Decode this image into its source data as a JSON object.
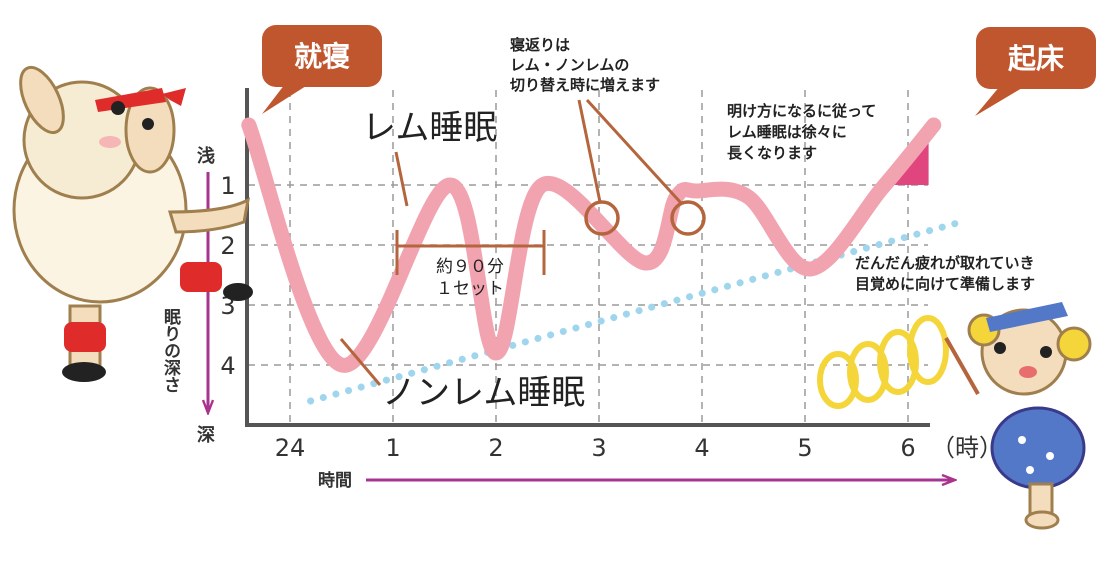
{
  "bubbles": {
    "sleep_onset": "就寝",
    "wake_up": "起床"
  },
  "labels": {
    "rem_sleep": "レム睡眠",
    "nonrem_sleep": "ノンレム睡眠",
    "cycle_line1": "約９０分",
    "cycle_line2": "１セット"
  },
  "annotations": {
    "turnover": [
      "寝返りは",
      "レム・ノンレムの",
      "切り替え時に増えます"
    ],
    "dawn": [
      "明け方になるに従って",
      "レム睡眠は徐々に",
      "長くなります"
    ],
    "fatigue": [
      "だんだん疲れが取れていき",
      "目覚めに向けて準備します"
    ]
  },
  "axes": {
    "depth_shallow": "浅",
    "depth_deep": "深",
    "depth_title": "眠りの深さ",
    "time_title": "時間",
    "time_unit": "（時）"
  },
  "colors": {
    "sleep_curve": "#f2a3b0",
    "rem_fill": "#e0457e",
    "trend_dots": "#9fd6ee",
    "bubble": "#c0562d",
    "axis_arrow": "#a8348f",
    "pointer": "#b5653d",
    "grid": "#9a9a9a",
    "spring": "#f5d63a"
  },
  "chart_data": {
    "type": "line",
    "x_ticks": [
      "24",
      "1",
      "2",
      "3",
      "4",
      "5",
      "6"
    ],
    "y_ticks": [
      "1",
      "2",
      "3",
      "4"
    ],
    "curve": {
      "x": [
        23.6,
        24.5,
        25.55,
        26.0,
        26.45,
        27.45,
        27.75,
        27.95,
        28.45,
        29.05,
        29.75,
        30.25
      ],
      "y": [
        0.0,
        4.0,
        1.0,
        3.8,
        1.0,
        2.3,
        1.2,
        1.1,
        1.2,
        2.4,
        1.05,
        0.0
      ]
    },
    "rem_segments": [
      {
        "from": 25.1,
        "to": 25.9
      },
      {
        "from": 26.3,
        "to": 27.0
      },
      {
        "from": 27.3,
        "to": 28.4
      },
      {
        "from": 28.95,
        "to": 30.2
      }
    ],
    "trend_line": {
      "x": [
        24.2,
        30.55
      ],
      "y": [
        4.6,
        1.6
      ]
    },
    "cycle_span": {
      "from": 25.0,
      "to": 25.75
    }
  }
}
